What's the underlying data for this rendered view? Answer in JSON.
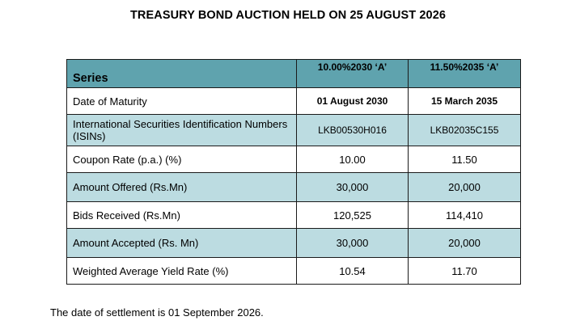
{
  "title": "TREASURY BOND AUCTION HELD ON 25 AUGUST 2026",
  "table": {
    "header": {
      "label": "Series",
      "series": [
        "10.00%2030 ‘A’",
        "11.50%2035 ‘A’"
      ]
    },
    "rows": [
      {
        "label": "Date of Maturity",
        "values": [
          "01 August 2030",
          "15 March 2035"
        ]
      },
      {
        "label": "International Securities Identification Numbers (ISINs)",
        "values": [
          "LKB00530H016",
          "LKB02035C155"
        ]
      },
      {
        "label": "Coupon Rate (p.a.) (%)",
        "values": [
          "10.00",
          "11.50"
        ]
      },
      {
        "label": "Amount Offered (Rs.Mn)",
        "values": [
          "30,000",
          "20,000"
        ]
      },
      {
        "label": "Bids Received (Rs.Mn)",
        "values": [
          "120,525",
          "114,410"
        ]
      },
      {
        "label": "Amount Accepted (Rs. Mn)",
        "values": [
          "30,000",
          "20,000"
        ]
      },
      {
        "label": "Weighted Average Yield Rate (%)",
        "values": [
          "10.54",
          "11.70"
        ]
      }
    ]
  },
  "footnote": "The date of settlement is 01 September 2026.",
  "colors": {
    "header_background": "#5fa3ae",
    "shaded_row_background": "#bcdce1",
    "border": "#1a1a1a"
  }
}
